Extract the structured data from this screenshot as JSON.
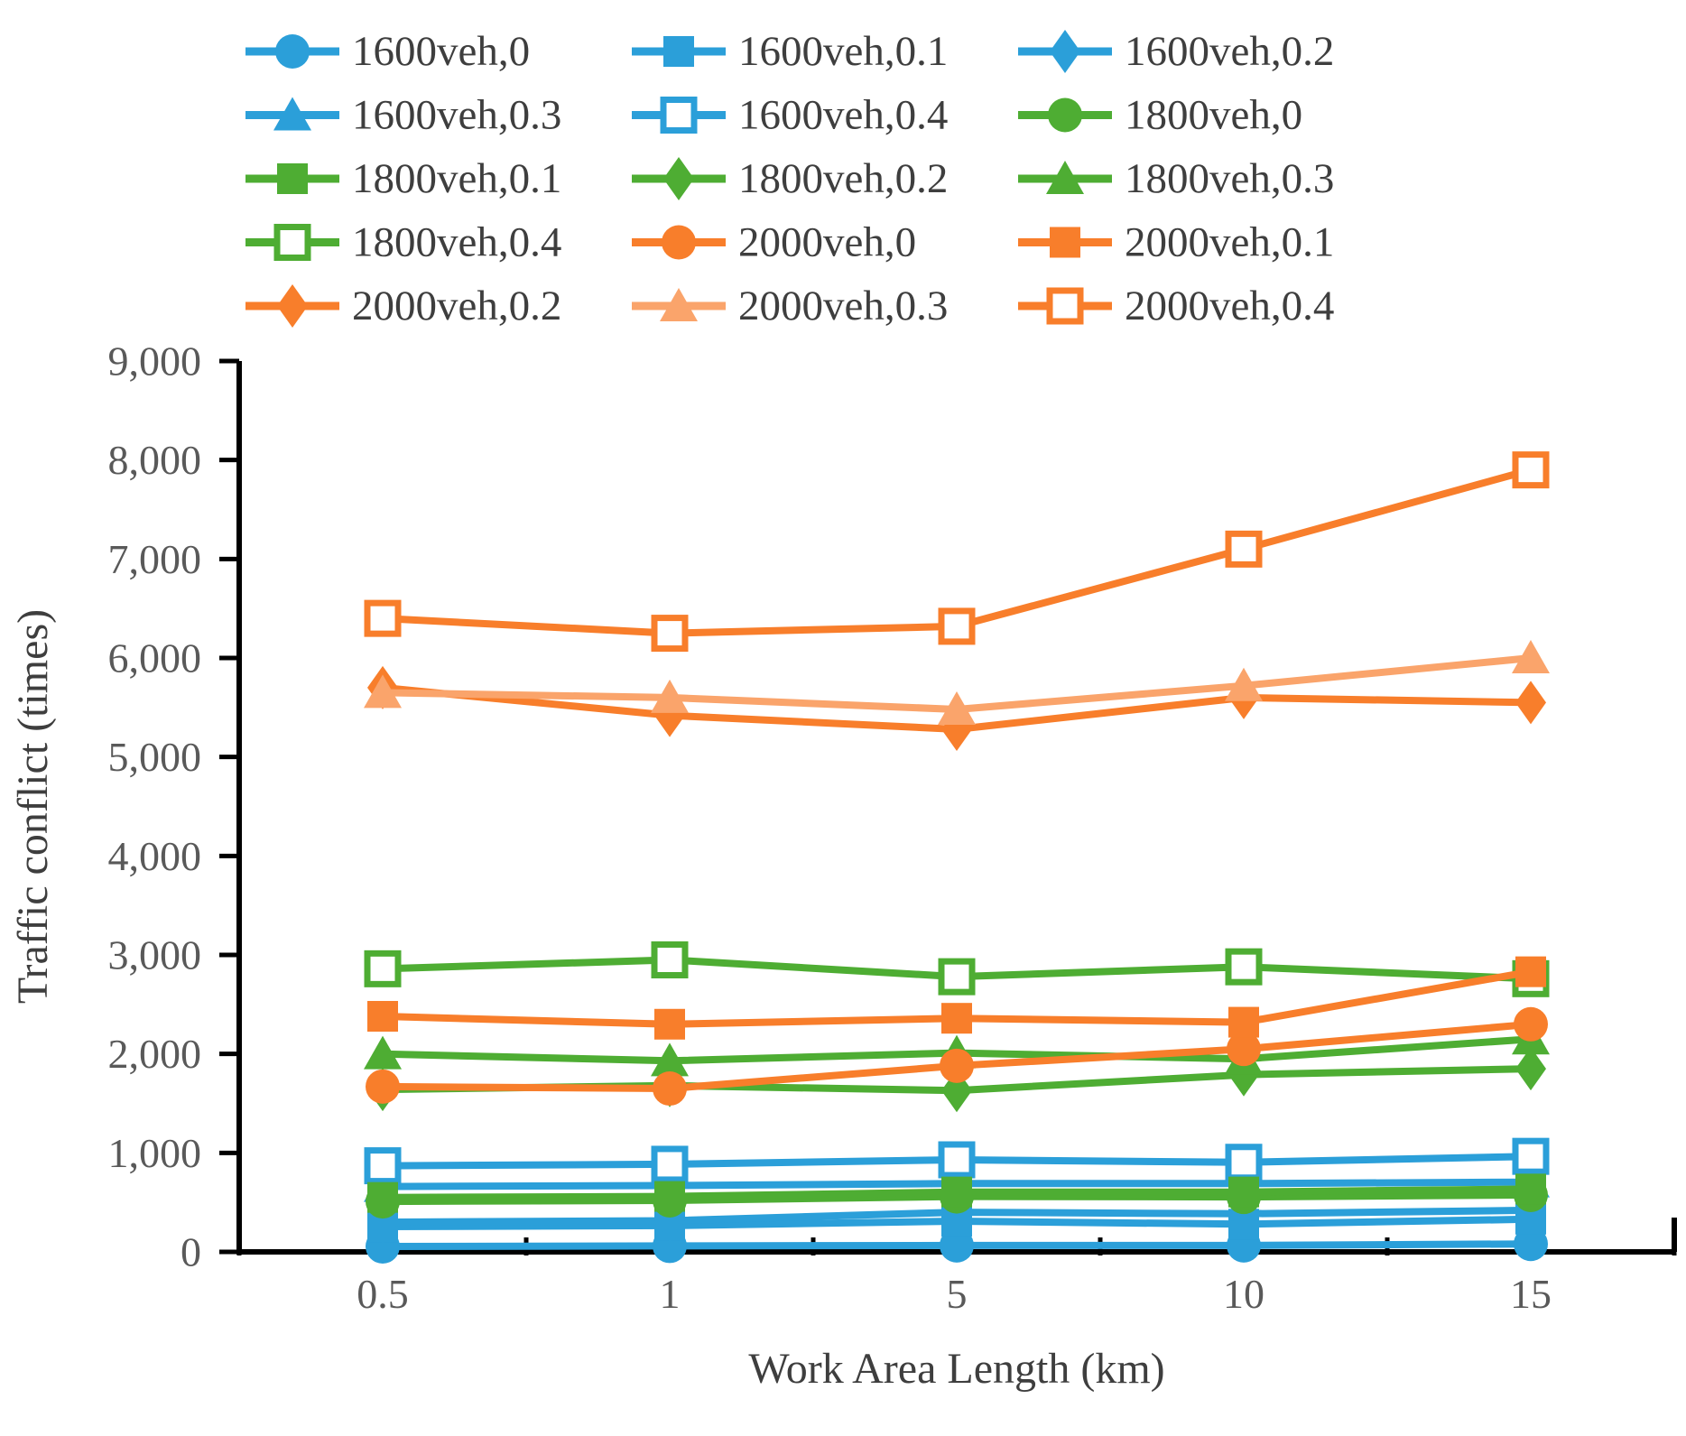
{
  "figure": {
    "kind": "line-chart-figure"
  },
  "chart_data": {
    "type": "line",
    "title": "",
    "xlabel": "Work Area Length (km)",
    "ylabel": "Traffic conflict (times)",
    "categories": [
      "0.5",
      "1",
      "5",
      "10",
      "15"
    ],
    "ylim": [
      0,
      9000
    ],
    "y_ticks": [
      {
        "value": 0,
        "label": "0"
      },
      {
        "value": 1000,
        "label": "1,000"
      },
      {
        "value": 2000,
        "label": "2,000"
      },
      {
        "value": 3000,
        "label": "3,000"
      },
      {
        "value": 4000,
        "label": "4,000"
      },
      {
        "value": 5000,
        "label": "5,000"
      },
      {
        "value": 6000,
        "label": "6,000"
      },
      {
        "value": 7000,
        "label": "7,000"
      },
      {
        "value": 8000,
        "label": "8,000"
      },
      {
        "value": 9000,
        "label": "9,000"
      }
    ],
    "grid": false,
    "legend_position": "top",
    "legend_columns": 3,
    "colors": {
      "blue": "#2B9FD9",
      "green": "#4EAD33",
      "orange": "#F87E2B",
      "light_orange": "#FAA46B",
      "axis_line": "#000000",
      "tick_text": "#595959",
      "title_text": "#3E3E3E"
    },
    "series": [
      {
        "name": "1600veh,0",
        "color_key": "blue",
        "marker": "circle",
        "fill": "solid",
        "values": [
          55,
          60,
          65,
          65,
          80
        ]
      },
      {
        "name": "1600veh,0.1",
        "color_key": "blue",
        "marker": "square",
        "fill": "solid",
        "values": [
          255,
          265,
          310,
          280,
          330
        ]
      },
      {
        "name": "1600veh,0.2",
        "color_key": "blue",
        "marker": "diamond",
        "fill": "solid",
        "values": [
          300,
          315,
          400,
          385,
          420
        ]
      },
      {
        "name": "1600veh,0.3",
        "color_key": "blue",
        "marker": "triangle",
        "fill": "solid",
        "values": [
          660,
          670,
          690,
          690,
          705
        ]
      },
      {
        "name": "1600veh,0.4",
        "color_key": "blue",
        "marker": "open-square",
        "fill": "open",
        "values": [
          870,
          885,
          930,
          905,
          965
        ]
      },
      {
        "name": "1800veh,0",
        "color_key": "green",
        "marker": "circle",
        "fill": "solid",
        "values": [
          510,
          520,
          560,
          555,
          575
        ]
      },
      {
        "name": "1800veh,0.1",
        "color_key": "green",
        "marker": "square",
        "fill": "solid",
        "values": [
          550,
          560,
          605,
          605,
          635
        ]
      },
      {
        "name": "1800veh,0.2",
        "color_key": "green",
        "marker": "diamond",
        "fill": "solid",
        "values": [
          1640,
          1680,
          1630,
          1790,
          1850
        ]
      },
      {
        "name": "1800veh,0.3",
        "color_key": "green",
        "marker": "triangle",
        "fill": "solid",
        "values": [
          2000,
          1930,
          2010,
          1950,
          2150
        ]
      },
      {
        "name": "1800veh,0.4",
        "color_key": "green",
        "marker": "open-square",
        "fill": "open",
        "values": [
          2860,
          2950,
          2780,
          2880,
          2760
        ]
      },
      {
        "name": "2000veh,0",
        "color_key": "orange",
        "marker": "circle",
        "fill": "solid",
        "values": [
          1670,
          1650,
          1880,
          2050,
          2300
        ]
      },
      {
        "name": "2000veh,0.1",
        "color_key": "orange",
        "marker": "square",
        "fill": "solid",
        "values": [
          2380,
          2300,
          2360,
          2320,
          2830
        ]
      },
      {
        "name": "2000veh,0.2",
        "color_key": "orange",
        "marker": "diamond",
        "fill": "solid",
        "values": [
          5700,
          5420,
          5280,
          5600,
          5550
        ]
      },
      {
        "name": "2000veh,0.3",
        "color_key": "light_orange",
        "marker": "triangle",
        "fill": "solid",
        "values": [
          5650,
          5600,
          5480,
          5720,
          6000
        ]
      },
      {
        "name": "2000veh,0.4",
        "color_key": "orange",
        "marker": "open-square",
        "fill": "open",
        "values": [
          6400,
          6250,
          6320,
          7100,
          7900
        ]
      }
    ]
  }
}
